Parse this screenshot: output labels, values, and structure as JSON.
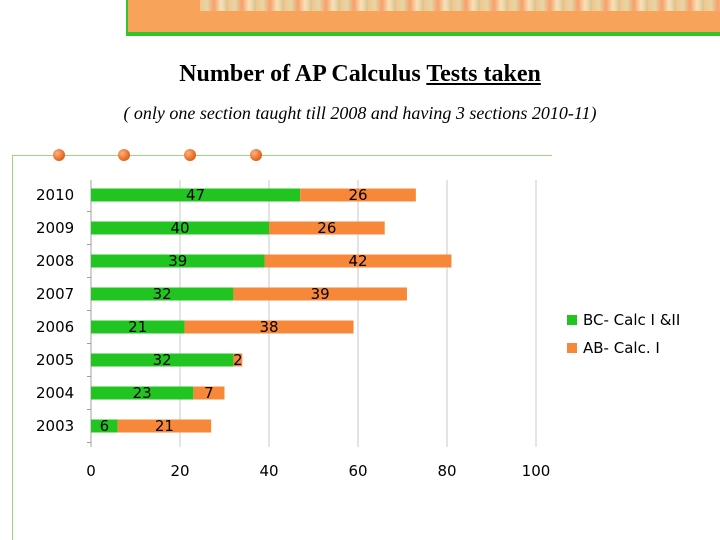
{
  "title": {
    "main": "Number of AP Calculus ",
    "underlined": "Tests taken"
  },
  "subtitle": "( only one section taught till 2008 and having 3 sections 2010-11)",
  "colors": {
    "bc": "#22c422",
    "ab": "#f7883a"
  },
  "chart_data": {
    "type": "bar",
    "orientation": "horizontal",
    "stacked": true,
    "categories": [
      "2010",
      "2009",
      "2008",
      "2007",
      "2006",
      "2005",
      "2004",
      "2003"
    ],
    "series": [
      {
        "name": "BC- Calc I &II",
        "values": [
          47,
          40,
          39,
          32,
          21,
          32,
          23,
          6
        ]
      },
      {
        "name": "AB- Calc. I",
        "values": [
          26,
          26,
          42,
          39,
          38,
          2,
          7,
          21
        ]
      }
    ],
    "xlim": [
      0,
      100
    ],
    "xticks": [
      "0",
      "20",
      "40",
      "60",
      "80",
      "100"
    ],
    "grid": true,
    "legend_position": "right"
  }
}
